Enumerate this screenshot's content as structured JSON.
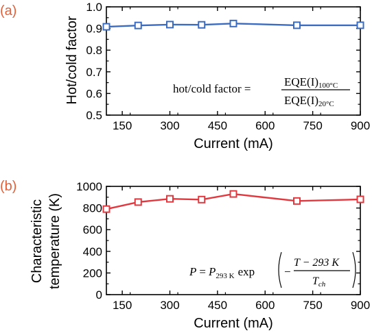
{
  "chart_data": [
    {
      "type": "line",
      "panel_label": "(a)",
      "ylabel": "Hot/cold factor",
      "xlabel": "Current (mA)",
      "xlim": [
        100,
        900
      ],
      "ylim": [
        0.5,
        1.0
      ],
      "x_ticks": [
        150,
        300,
        450,
        600,
        750,
        900
      ],
      "y_ticks": [
        0.5,
        0.6,
        0.7,
        0.8,
        0.9,
        1.0
      ],
      "y_tick_labels": [
        "0.5",
        "0.6",
        "0.7",
        "0.8",
        "0.9",
        "1.0"
      ],
      "color": "#3a6bbf",
      "marker": "open-square",
      "grid": false,
      "series": [
        {
          "x": [
            100,
            200,
            300,
            400,
            500,
            700,
            900
          ],
          "values": [
            0.908,
            0.914,
            0.918,
            0.917,
            0.923,
            0.915,
            0.915
          ]
        }
      ],
      "annotation": {
        "lhs": "hot/cold factor =",
        "numerator": "EQE(I)",
        "numerator_sub": "100°C",
        "denominator": "EQE(I)",
        "denominator_sub": "20°C"
      }
    },
    {
      "type": "line",
      "panel_label": "(b)",
      "ylabel_lines": [
        "Characteristic",
        "temperature (K)"
      ],
      "xlabel": "Current (mA)",
      "xlim": [
        100,
        900
      ],
      "ylim": [
        0,
        1000
      ],
      "x_ticks": [
        150,
        300,
        450,
        600,
        750,
        900
      ],
      "y_ticks": [
        0,
        200,
        400,
        600,
        800,
        1000
      ],
      "y_tick_labels": [
        "0",
        "200",
        "400",
        "600",
        "800",
        "1000"
      ],
      "color": "#e0383e",
      "marker": "open-square",
      "grid": false,
      "series": [
        {
          "x": [
            100,
            200,
            300,
            400,
            500,
            700,
            900
          ],
          "values": [
            790,
            855,
            885,
            878,
            930,
            865,
            880
          ]
        }
      ],
      "annotation": {
        "p": "P",
        "eq": "=",
        "p293": "P",
        "p293_sub": "293 K",
        "exp": "exp",
        "minus": "−",
        "numerator": "T − 293 K",
        "denominator": "T",
        "denominator_sub": "ch"
      }
    }
  ]
}
